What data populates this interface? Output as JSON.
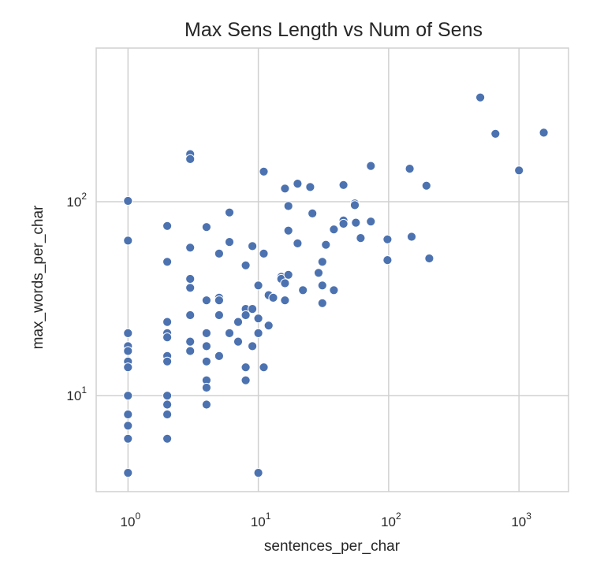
{
  "chart_data": {
    "type": "scatter",
    "title": "Max Sens Length vs Num of Sens",
    "xlabel": "sentences_per_char",
    "ylabel": "max_words_per_char",
    "xscale": "log",
    "yscale": "log",
    "xlim": [
      0.57,
      2400
    ],
    "ylim": [
      3.2,
      620
    ],
    "grid": true,
    "point_color": "#4c72b0",
    "x_ticks": [
      {
        "base": "10",
        "exp": "0",
        "value": 1
      },
      {
        "base": "10",
        "exp": "1",
        "value": 10
      },
      {
        "base": "10",
        "exp": "2",
        "value": 100
      },
      {
        "base": "10",
        "exp": "3",
        "value": 1000
      }
    ],
    "y_ticks": [
      {
        "base": "10",
        "exp": "1",
        "value": 10
      },
      {
        "base": "10",
        "exp": "2",
        "value": 100
      }
    ],
    "points": [
      [
        1,
        101
      ],
      [
        1,
        63
      ],
      [
        1,
        21
      ],
      [
        1,
        18
      ],
      [
        1,
        17
      ],
      [
        1,
        15
      ],
      [
        1,
        14
      ],
      [
        1,
        10
      ],
      [
        1,
        8
      ],
      [
        1,
        7
      ],
      [
        1,
        6
      ],
      [
        1,
        4
      ],
      [
        2,
        75
      ],
      [
        2,
        49
      ],
      [
        2,
        24
      ],
      [
        2,
        21
      ],
      [
        2,
        20
      ],
      [
        2,
        16
      ],
      [
        2,
        15
      ],
      [
        2,
        10
      ],
      [
        2,
        9
      ],
      [
        2,
        8
      ],
      [
        2,
        6
      ],
      [
        3,
        176
      ],
      [
        3,
        166
      ],
      [
        3,
        58
      ],
      [
        3,
        40
      ],
      [
        3,
        36
      ],
      [
        3,
        26
      ],
      [
        3,
        19
      ],
      [
        3,
        17
      ],
      [
        4,
        74
      ],
      [
        4,
        31
      ],
      [
        4,
        21
      ],
      [
        4,
        18
      ],
      [
        4,
        15
      ],
      [
        4,
        12
      ],
      [
        4,
        11
      ],
      [
        4,
        9
      ],
      [
        5,
        54
      ],
      [
        5,
        32
      ],
      [
        5,
        31
      ],
      [
        5,
        26
      ],
      [
        5,
        16
      ],
      [
        6,
        88
      ],
      [
        6,
        62
      ],
      [
        6,
        21
      ],
      [
        7,
        24
      ],
      [
        7,
        19
      ],
      [
        8,
        47
      ],
      [
        8,
        28
      ],
      [
        8,
        26
      ],
      [
        8,
        14
      ],
      [
        8,
        12
      ],
      [
        9,
        59
      ],
      [
        9,
        28
      ],
      [
        9,
        18
      ],
      [
        10,
        37
      ],
      [
        10,
        25
      ],
      [
        10,
        21
      ],
      [
        10,
        4
      ],
      [
        11,
        143
      ],
      [
        11,
        54
      ],
      [
        11,
        14
      ],
      [
        12,
        33
      ],
      [
        12,
        23
      ],
      [
        13,
        32
      ],
      [
        15,
        41
      ],
      [
        15,
        40
      ],
      [
        16,
        117
      ],
      [
        16,
        38
      ],
      [
        16,
        31
      ],
      [
        17,
        95
      ],
      [
        17,
        71
      ],
      [
        17,
        42
      ],
      [
        20,
        124
      ],
      [
        20,
        61
      ],
      [
        22,
        35
      ],
      [
        25,
        119
      ],
      [
        26,
        87
      ],
      [
        29,
        43
      ],
      [
        31,
        49
      ],
      [
        31,
        37
      ],
      [
        31,
        30
      ],
      [
        33,
        60
      ],
      [
        38,
        72
      ],
      [
        38,
        35
      ],
      [
        45,
        122
      ],
      [
        45,
        80
      ],
      [
        45,
        77
      ],
      [
        55,
        98
      ],
      [
        55,
        96
      ],
      [
        56,
        78
      ],
      [
        61,
        65
      ],
      [
        73,
        153
      ],
      [
        73,
        79
      ],
      [
        98,
        64
      ],
      [
        98,
        50
      ],
      [
        145,
        148
      ],
      [
        150,
        66
      ],
      [
        195,
        121
      ],
      [
        205,
        51
      ],
      [
        505,
        345
      ],
      [
        660,
        224
      ],
      [
        1000,
        145
      ],
      [
        1550,
        227
      ]
    ]
  }
}
